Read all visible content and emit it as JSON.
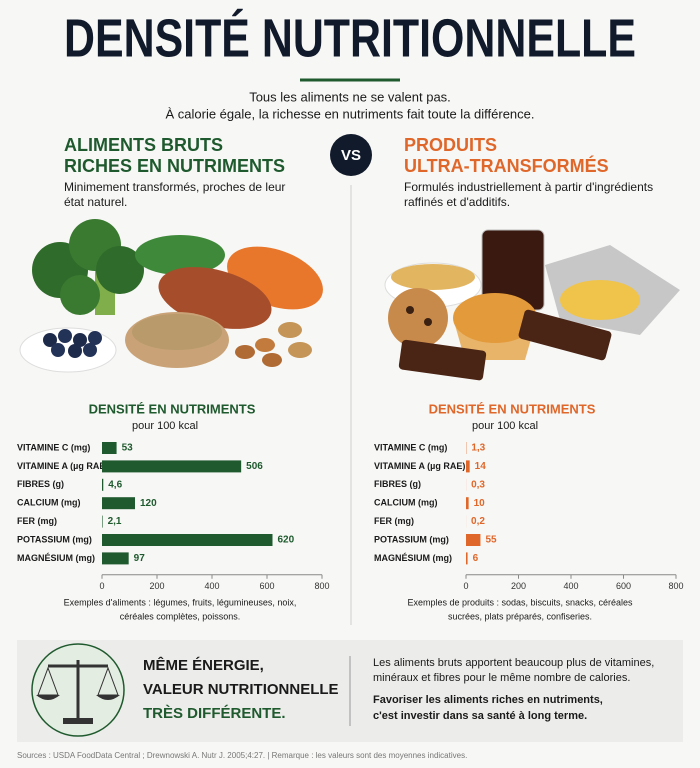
{
  "header": {
    "title": "DENSITÉ NUTRITIONNELLE",
    "subtitle": [
      "Tous les aliments ne se valent pas.",
      "À calorie égale, la richesse en nutriments fait toute la différence."
    ]
  },
  "vs": "VS",
  "left": {
    "heading": [
      "ALIMENTS BRUTS",
      "RICHES EN NUTRIMENTS"
    ],
    "description": [
      "Minimement transformés, proches de leur",
      "état naturel."
    ]
  },
  "right": {
    "heading": [
      "PRODUITS",
      "ULTRA-TRANSFORMÉS"
    ],
    "description": [
      "Formulés industriellement à partir d'ingrédients",
      "raffinés et d'additifs."
    ]
  },
  "chart_data": [
    {
      "type": "bar",
      "orientation": "horizontal",
      "title": "DENSITÉ EN NUTRIMENTS",
      "subtitle": "pour 100 kcal",
      "categories": [
        "VITAMINE C (mg)",
        "VITAMINE A (µg RAE)",
        "FIBRES (g)",
        "CALCIUM (mg)",
        "FER (mg)",
        "POTASSIUM (mg)",
        "MAGNÉSIUM (mg)"
      ],
      "values": [
        53,
        506,
        4.6,
        120,
        2.1,
        620,
        97
      ],
      "value_labels": [
        "53",
        "506",
        "4,6",
        "120",
        "2,1",
        "620",
        "97"
      ],
      "color": "#1f5a2e",
      "xlim": [
        0,
        800
      ],
      "xticks": [
        0,
        200,
        400,
        600,
        800
      ],
      "note": [
        "Exemples d'aliments : légumes, fruits, légumineuses, noix,",
        "céréales complètes, poissons."
      ]
    },
    {
      "type": "bar",
      "orientation": "horizontal",
      "title": "DENSITÉ EN NUTRIMENTS",
      "subtitle": "pour 100 kcal",
      "categories": [
        "VITAMINE C (mg)",
        "VITAMINE A (µg RAE)",
        "FIBRES (g)",
        "CALCIUM (mg)",
        "FER (mg)",
        "POTASSIUM (mg)",
        "MAGNÉSIUM (mg)"
      ],
      "values": [
        1.3,
        14,
        0.3,
        10,
        0.2,
        55,
        6
      ],
      "value_labels": [
        "1,3",
        "14",
        "0,3",
        "10",
        "0,2",
        "55",
        "6"
      ],
      "color": "#e0672a",
      "xlim": [
        0,
        800
      ],
      "xticks": [
        0,
        200,
        400,
        600,
        800
      ],
      "note": [
        "Exemples de produits : sodas, biscuits, snacks, céréales",
        "sucrées, plats préparés, confiseries."
      ]
    }
  ],
  "conclusion": {
    "headline": [
      "MÊME ÉNERGIE,",
      "VALEUR NUTRITIONNELLE",
      "TRÈS DIFFÉRENTE."
    ],
    "text": [
      "Les aliments bruts apportent beaucoup plus de vitamines,",
      "minéraux et fibres pour le même nombre de calories."
    ],
    "emphasis": [
      "Favoriser les aliments riches en nutriments,",
      "c'est investir dans sa santé à long terme."
    ]
  },
  "sources": "Sources : USDA FoodData Central ; Drewnowski A. Nutr J. 2005;4:27.  |  Remarque : les valeurs sont des moyennes indicatives."
}
